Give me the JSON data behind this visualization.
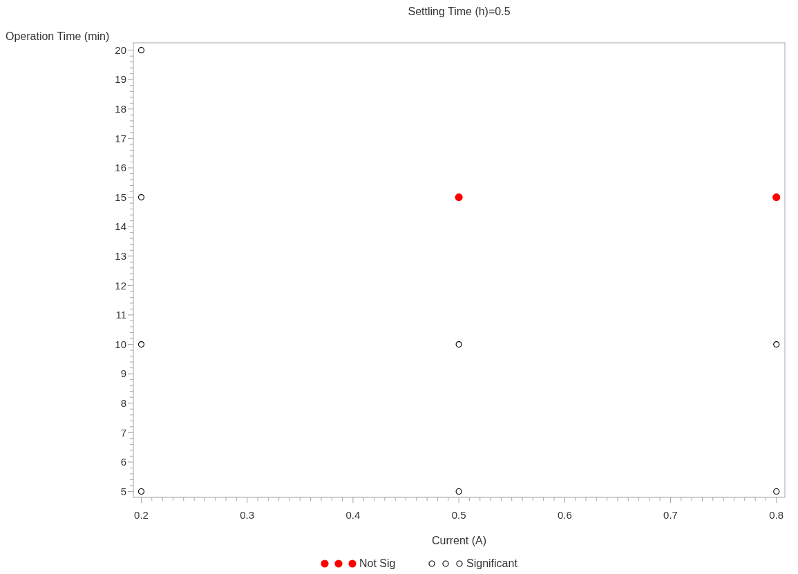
{
  "chart_data": {
    "type": "scatter",
    "title": "Settling Time (h)=0.5",
    "xlabel": "Current (A)",
    "ylabel": "Operation Time (min)",
    "xlim": [
      0.1925,
      0.808
    ],
    "ylim": [
      4.8,
      20.25
    ],
    "xticks": [
      0.2,
      {
        "value": 0.21,
        "label": null
      },
      {
        "value": 0.22,
        "label": null
      },
      {
        "value": 0.23,
        "label": null
      },
      {
        "value": 0.24,
        "label": null
      },
      {
        "value": 0.25,
        "label": null
      },
      {
        "value": 0.26,
        "label": null
      },
      {
        "value": 0.27,
        "label": null
      },
      {
        "value": 0.28,
        "label": null
      },
      {
        "value": 0.29,
        "label": null
      },
      0.3,
      {
        "value": 0.31,
        "label": null
      },
      {
        "value": 0.32,
        "label": null
      },
      {
        "value": 0.33,
        "label": null
      },
      {
        "value": 0.34,
        "label": null
      },
      {
        "value": 0.35,
        "label": null
      },
      {
        "value": 0.36,
        "label": null
      },
      {
        "value": 0.37,
        "label": null
      },
      {
        "value": 0.38,
        "label": null
      },
      {
        "value": 0.39,
        "label": null
      },
      0.4,
      {
        "value": 0.41,
        "label": null
      },
      {
        "value": 0.42,
        "label": null
      },
      {
        "value": 0.43,
        "label": null
      },
      {
        "value": 0.44,
        "label": null
      },
      {
        "value": 0.45,
        "label": null
      },
      {
        "value": 0.46,
        "label": null
      },
      {
        "value": 0.47,
        "label": null
      },
      {
        "value": 0.48,
        "label": null
      },
      {
        "value": 0.49,
        "label": null
      },
      0.5,
      {
        "value": 0.51,
        "label": null
      },
      {
        "value": 0.52,
        "label": null
      },
      {
        "value": 0.53,
        "label": null
      },
      {
        "value": 0.54,
        "label": null
      },
      {
        "value": 0.55,
        "label": null
      },
      {
        "value": 0.56,
        "label": null
      },
      {
        "value": 0.57,
        "label": null
      },
      {
        "value": 0.58,
        "label": null
      },
      {
        "value": 0.59,
        "label": null
      },
      0.6,
      {
        "value": 0.61,
        "label": null
      },
      {
        "value": 0.62,
        "label": null
      },
      {
        "value": 0.63,
        "label": null
      },
      {
        "value": 0.64,
        "label": null
      },
      {
        "value": 0.65,
        "label": null
      },
      {
        "value": 0.66,
        "label": null
      },
      {
        "value": 0.67,
        "label": null
      },
      {
        "value": 0.68,
        "label": null
      },
      {
        "value": 0.69,
        "label": null
      },
      0.7,
      {
        "value": 0.71,
        "label": null
      },
      {
        "value": 0.72,
        "label": null
      },
      {
        "value": 0.73,
        "label": null
      },
      {
        "value": 0.74,
        "label": null
      },
      {
        "value": 0.75,
        "label": null
      },
      {
        "value": 0.76,
        "label": null
      },
      {
        "value": 0.77,
        "label": null
      },
      {
        "value": 0.78,
        "label": null
      },
      {
        "value": 0.79,
        "label": null
      },
      0.8
    ],
    "yticks": [
      5,
      {
        "value": 5.2,
        "label": null
      },
      {
        "value": 5.4,
        "label": null
      },
      {
        "value": 5.6,
        "label": null
      },
      {
        "value": 5.8,
        "label": null
      },
      6,
      {
        "value": 6.2,
        "label": null
      },
      {
        "value": 6.4,
        "label": null
      },
      {
        "value": 6.6,
        "label": null
      },
      {
        "value": 6.8,
        "label": null
      },
      7,
      {
        "value": 7.2,
        "label": null
      },
      {
        "value": 7.4,
        "label": null
      },
      {
        "value": 7.6,
        "label": null
      },
      {
        "value": 7.8,
        "label": null
      },
      8,
      {
        "value": 8.2,
        "label": null
      },
      {
        "value": 8.4,
        "label": null
      },
      {
        "value": 8.6,
        "label": null
      },
      {
        "value": 8.8,
        "label": null
      },
      9,
      {
        "value": 9.2,
        "label": null
      },
      {
        "value": 9.4,
        "label": null
      },
      {
        "value": 9.6,
        "label": null
      },
      {
        "value": 9.8,
        "label": null
      },
      10,
      {
        "value": 10.2,
        "label": null
      },
      {
        "value": 10.4,
        "label": null
      },
      {
        "value": 10.6,
        "label": null
      },
      {
        "value": 10.8,
        "label": null
      },
      11,
      {
        "value": 11.2,
        "label": null
      },
      {
        "value": 11.4,
        "label": null
      },
      {
        "value": 11.6,
        "label": null
      },
      {
        "value": 11.8,
        "label": null
      },
      12,
      {
        "value": 12.2,
        "label": null
      },
      {
        "value": 12.4,
        "label": null
      },
      {
        "value": 12.6,
        "label": null
      },
      {
        "value": 12.8,
        "label": null
      },
      13,
      {
        "value": 13.2,
        "label": null
      },
      {
        "value": 13.4,
        "label": null
      },
      {
        "value": 13.6,
        "label": null
      },
      {
        "value": 13.8,
        "label": null
      },
      14,
      {
        "value": 14.2,
        "label": null
      },
      {
        "value": 14.4,
        "label": null
      },
      {
        "value": 14.6,
        "label": null
      },
      {
        "value": 14.8,
        "label": null
      },
      15,
      {
        "value": 15.2,
        "label": null
      },
      {
        "value": 15.4,
        "label": null
      },
      {
        "value": 15.6,
        "label": null
      },
      {
        "value": 15.8,
        "label": null
      },
      16,
      {
        "value": 16.2,
        "label": null
      },
      {
        "value": 16.4,
        "label": null
      },
      {
        "value": 16.6,
        "label": null
      },
      {
        "value": 16.8,
        "label": null
      },
      17,
      {
        "value": 17.2,
        "label": null
      },
      {
        "value": 17.4,
        "label": null
      },
      {
        "value": 17.6,
        "label": null
      },
      {
        "value": 17.8,
        "label": null
      },
      18,
      {
        "value": 18.2,
        "label": null
      },
      {
        "value": 18.4,
        "label": null
      },
      {
        "value": 18.6,
        "label": null
      },
      {
        "value": 18.8,
        "label": null
      },
      19,
      {
        "value": 19.2,
        "label": null
      },
      {
        "value": 19.4,
        "label": null
      },
      {
        "value": 19.6,
        "label": null
      },
      {
        "value": 19.8,
        "label": null
      },
      20
    ],
    "grid": false,
    "legend": "bottom",
    "series": [
      {
        "name": "Not Sig",
        "color": "#ff0000",
        "marker": "circle",
        "x": [
          0.5,
          0.8
        ],
        "values": [
          15,
          15
        ]
      },
      {
        "name": "Significant",
        "color": "#000000",
        "marker": "circle",
        "x": [
          0.2,
          0.2,
          0.2,
          0.2,
          0.5,
          0.5,
          0.8,
          0.8
        ],
        "values": [
          20,
          15,
          10,
          5,
          10,
          5,
          10,
          5
        ]
      }
    ]
  }
}
